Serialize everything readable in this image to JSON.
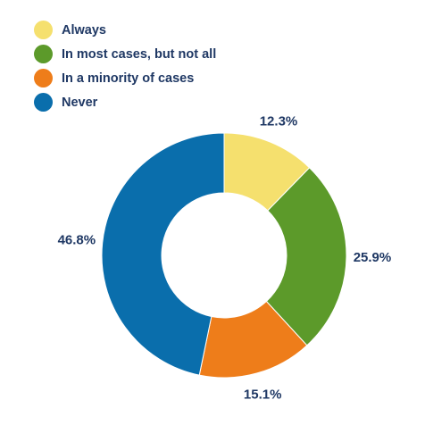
{
  "chart_data": {
    "type": "pie",
    "donut": true,
    "legend_position": "top-left",
    "categories": [
      "Always",
      "In most cases, but not all",
      "In a minority of cases",
      "Never"
    ],
    "values": [
      12.3,
      25.9,
      15.1,
      46.8
    ],
    "data_labels": [
      "12.3%",
      "25.9%",
      "15.1%",
      "46.8%"
    ],
    "colors": [
      "#f5e06e",
      "#5c9a2a",
      "#ee7d1a",
      "#0a6eac"
    ]
  }
}
